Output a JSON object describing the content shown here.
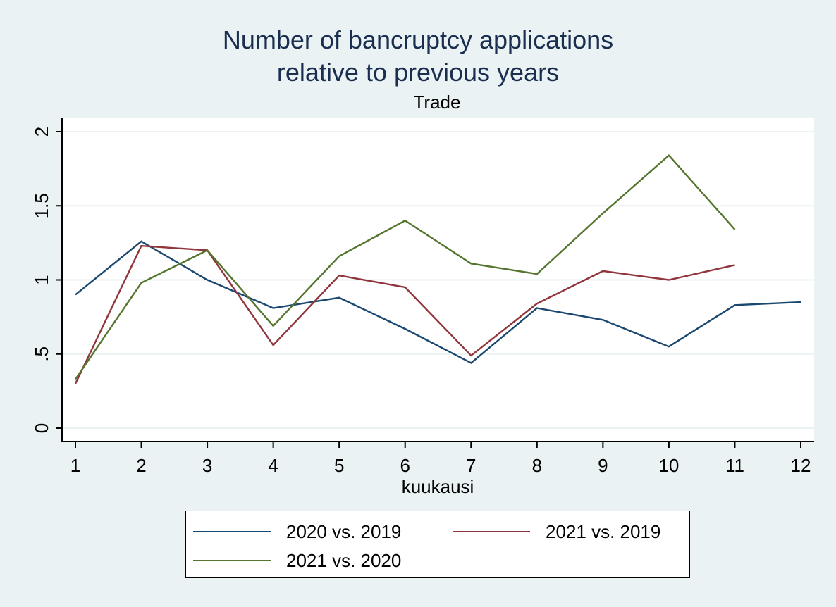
{
  "chart_data": {
    "type": "line",
    "title": [
      "Number of bancruptcy applications",
      "relative to previous years"
    ],
    "subtitle": "Trade",
    "xlabel": "kuukausi",
    "ylabel": "",
    "xlim": [
      1,
      12
    ],
    "ylim": [
      0,
      2
    ],
    "xticks": [
      1,
      2,
      3,
      4,
      5,
      6,
      7,
      8,
      9,
      10,
      11,
      12
    ],
    "yticks": [
      0,
      0.5,
      1,
      1.5,
      2
    ],
    "ytick_labels": [
      "0",
      ".5",
      "1",
      "1.5",
      "2"
    ],
    "grid": true,
    "legend_position": "bottom",
    "series": [
      {
        "name": "2020 vs. 2019",
        "color": "#1a476f",
        "x": [
          1,
          2,
          3,
          4,
          5,
          6,
          7,
          8,
          9,
          10,
          11,
          12
        ],
        "values": [
          0.9,
          1.26,
          1.0,
          0.81,
          0.88,
          0.67,
          0.44,
          0.81,
          0.73,
          0.55,
          0.83,
          0.85
        ]
      },
      {
        "name": "2021 vs. 2019",
        "color": "#90353b",
        "x": [
          1,
          2,
          3,
          4,
          5,
          6,
          7,
          8,
          9,
          10,
          11
        ],
        "values": [
          0.3,
          1.23,
          1.2,
          0.56,
          1.03,
          0.95,
          0.49,
          0.84,
          1.06,
          1.0,
          1.1
        ]
      },
      {
        "name": "2021 vs. 2020",
        "color": "#55752f",
        "x": [
          1,
          2,
          3,
          4,
          5,
          6,
          7,
          8,
          9,
          10,
          11
        ],
        "values": [
          0.33,
          0.98,
          1.2,
          0.69,
          1.16,
          1.4,
          1.11,
          1.04,
          1.45,
          1.84,
          1.34
        ]
      }
    ]
  }
}
